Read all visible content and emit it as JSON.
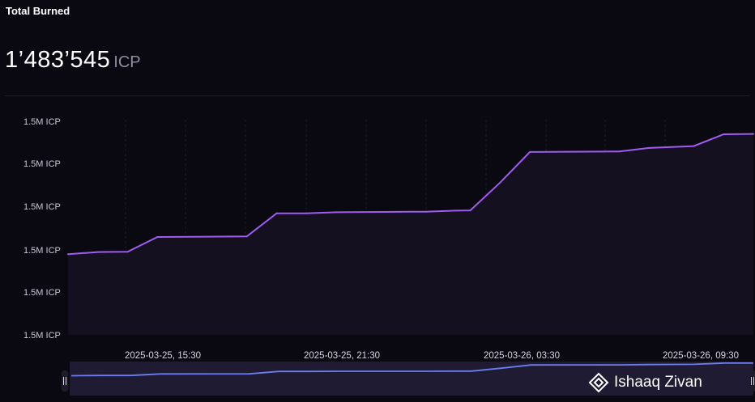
{
  "header": {
    "title": "Total Burned",
    "value": "1’483’545",
    "unit": "ICP"
  },
  "watermark": {
    "text": "Ishaaq Zivan"
  },
  "chart_data": {
    "type": "area",
    "title": "Total Burned",
    "x_tick_labels": [
      "2025-03-25, 15:30",
      "2025-03-25, 21:30",
      "2025-03-26, 03:30",
      "2025-03-26, 09:30"
    ],
    "y_tick_labels": [
      "1.5M ICP",
      "1.5M ICP",
      "1.5M ICP",
      "1.5M ICP",
      "1.5M ICP",
      "1.5M ICP"
    ],
    "ylim": [
      1482800,
      1483600
    ],
    "grid": "vertical-dashed",
    "line_color": "#a25bf2",
    "navigator_color": "#6b7ef0",
    "series": [
      {
        "values": [
          {
            "x": "2025-03-25 13:30",
            "y": 1483100
          },
          {
            "x": "2025-03-25 14:30",
            "y": 1483108
          },
          {
            "x": "2025-03-25 15:30",
            "y": 1483109
          },
          {
            "x": "2025-03-25 16:30",
            "y": 1483164
          },
          {
            "x": "2025-03-25 19:30",
            "y": 1483166
          },
          {
            "x": "2025-03-25 20:30",
            "y": 1483252
          },
          {
            "x": "2025-03-25 21:30",
            "y": 1483252
          },
          {
            "x": "2025-03-25 22:30",
            "y": 1483256
          },
          {
            "x": "2025-03-26 01:30",
            "y": 1483258
          },
          {
            "x": "2025-03-26 02:30",
            "y": 1483262
          },
          {
            "x": "2025-03-26 03:00",
            "y": 1483263
          },
          {
            "x": "2025-03-26 04:00",
            "y": 1483366
          },
          {
            "x": "2025-03-26 05:00",
            "y": 1483480
          },
          {
            "x": "2025-03-26 08:00",
            "y": 1483482
          },
          {
            "x": "2025-03-26 09:00",
            "y": 1483495
          },
          {
            "x": "2025-03-26 10:30",
            "y": 1483502
          },
          {
            "x": "2025-03-26 11:30",
            "y": 1483546
          },
          {
            "x": "2025-03-26 12:30",
            "y": 1483547
          }
        ]
      }
    ]
  }
}
